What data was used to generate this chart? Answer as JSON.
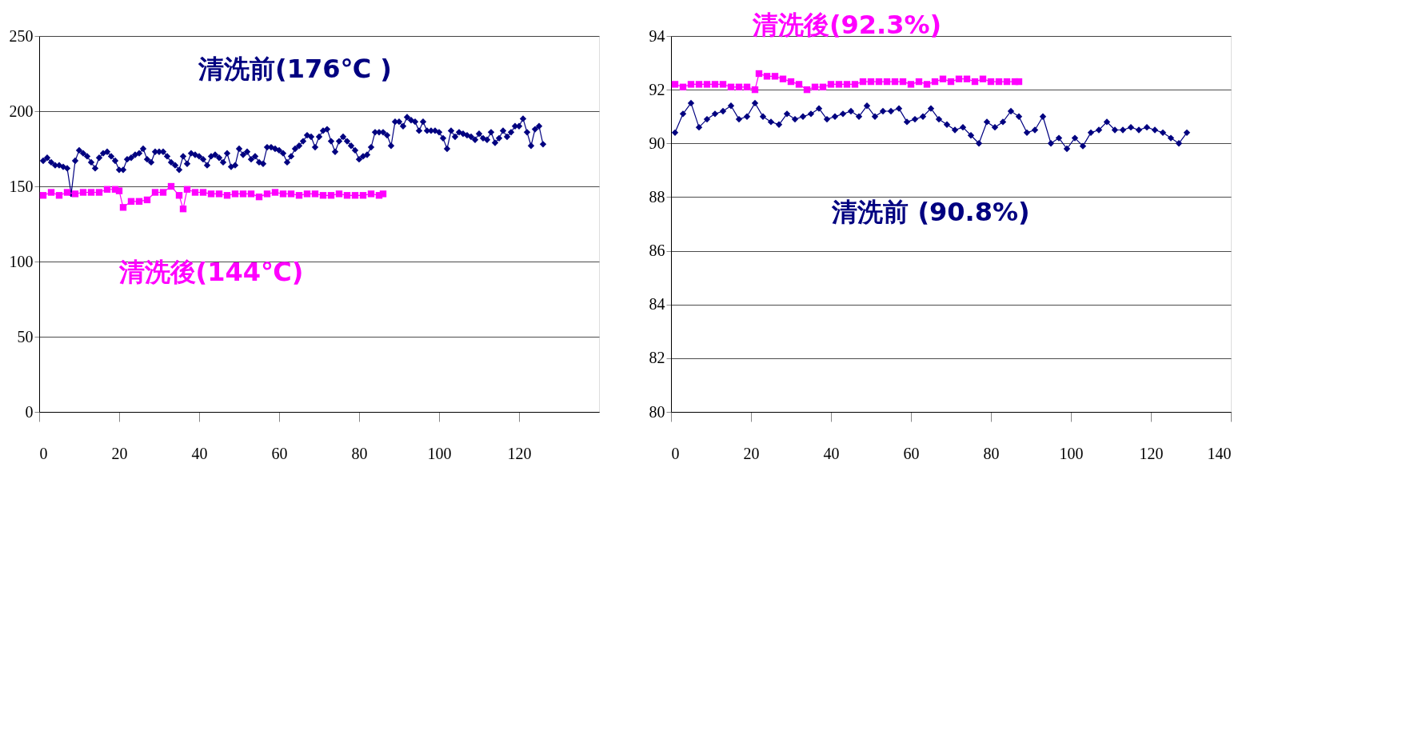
{
  "chart_data": [
    {
      "type": "line",
      "xlim": [
        0,
        140
      ],
      "xticks": [
        0,
        20,
        40,
        60,
        80,
        100,
        120
      ],
      "ylim": [
        0,
        250
      ],
      "yticks": [
        0,
        50,
        100,
        150,
        200,
        250
      ],
      "grid": "y",
      "series": [
        {
          "name": "清洗前(176℃ )",
          "color": "#000080",
          "marker": "diamond",
          "x": [
            1,
            2,
            3,
            4,
            5,
            6,
            7,
            8,
            9,
            10,
            11,
            12,
            13,
            14,
            15,
            16,
            17,
            18,
            19,
            20,
            21,
            22,
            23,
            24,
            25,
            26,
            27,
            28,
            29,
            30,
            31,
            32,
            33,
            34,
            35,
            36,
            37,
            38,
            39,
            40,
            41,
            42,
            43,
            44,
            45,
            46,
            47,
            48,
            49,
            50,
            51,
            52,
            53,
            54,
            55,
            56,
            57,
            58,
            59,
            60,
            61,
            62,
            63,
            64,
            65,
            66,
            67,
            68,
            69,
            70,
            71,
            72,
            73,
            74,
            75,
            76,
            77,
            78,
            79,
            80,
            81,
            82,
            83,
            84,
            85,
            86,
            87,
            88,
            89,
            90,
            91,
            92,
            93,
            94,
            95,
            96,
            97,
            98,
            99,
            100,
            101,
            102,
            103,
            104,
            105,
            106,
            107,
            108,
            109,
            110,
            111,
            112,
            113,
            114,
            115,
            116,
            117,
            118,
            119,
            120,
            121,
            122,
            123,
            124,
            125,
            126
          ],
          "values": [
            167,
            169,
            166,
            164,
            164,
            163,
            162,
            145,
            167,
            174,
            172,
            170,
            166,
            162,
            169,
            172,
            173,
            170,
            167,
            161,
            161,
            168,
            169,
            171,
            172,
            175,
            168,
            166,
            173,
            173,
            173,
            170,
            166,
            164,
            161,
            170,
            165,
            172,
            171,
            170,
            168,
            164,
            170,
            171,
            169,
            166,
            172,
            163,
            164,
            175,
            171,
            173,
            168,
            170,
            166,
            165,
            176,
            176,
            175,
            174,
            172,
            166,
            170,
            175,
            177,
            180,
            184,
            183,
            176,
            183,
            187,
            188,
            180,
            173,
            180,
            183,
            180,
            177,
            174,
            168,
            170,
            171,
            176,
            186,
            186,
            186,
            184,
            177,
            193,
            193,
            190,
            196,
            194,
            193,
            187,
            193,
            187,
            187,
            187,
            186,
            182,
            175,
            187,
            183,
            186,
            185,
            184,
            183,
            181,
            185,
            182,
            181,
            186,
            179,
            182,
            187,
            183,
            186,
            190,
            190,
            195,
            186,
            177,
            188,
            190,
            178
          ]
        },
        {
          "name": "清洗後(144℃)",
          "color": "#ff00ff",
          "marker": "square",
          "x": [
            1,
            3,
            5,
            7,
            9,
            11,
            13,
            15,
            17,
            19,
            20,
            21,
            23,
            25,
            27,
            29,
            31,
            33,
            35,
            36,
            37,
            39,
            41,
            43,
            45,
            47,
            49,
            51,
            53,
            55,
            57,
            59,
            61,
            63,
            65,
            67,
            69,
            71,
            73,
            75,
            77,
            79,
            81,
            83,
            85,
            86
          ],
          "values": [
            144,
            146,
            144,
            146,
            145,
            146,
            146,
            146,
            148,
            148,
            147,
            136,
            140,
            140,
            141,
            146,
            146,
            150,
            144,
            135,
            148,
            146,
            146,
            145,
            145,
            144,
            145,
            145,
            145,
            143,
            145,
            146,
            145,
            145,
            144,
            145,
            145,
            144,
            144,
            145,
            144,
            144,
            144,
            145,
            144,
            145
          ]
        }
      ]
    },
    {
      "type": "line",
      "xlim": [
        0,
        140
      ],
      "xticks": [
        0,
        20,
        40,
        60,
        80,
        100,
        120,
        140
      ],
      "ylim": [
        80,
        94
      ],
      "yticks": [
        80,
        82,
        84,
        86,
        88,
        90,
        92,
        94
      ],
      "grid": "y",
      "series": [
        {
          "name": "清洗後(92.3%)",
          "color": "#ff00ff",
          "marker": "square",
          "x": [
            1,
            3,
            5,
            7,
            9,
            11,
            13,
            15,
            17,
            19,
            21,
            22,
            24,
            26,
            28,
            30,
            32,
            34,
            36,
            38,
            40,
            42,
            44,
            46,
            48,
            50,
            52,
            54,
            56,
            58,
            60,
            62,
            64,
            66,
            68,
            70,
            72,
            74,
            76,
            78,
            80,
            82,
            84,
            86,
            87
          ],
          "values": [
            92.2,
            92.1,
            92.2,
            92.2,
            92.2,
            92.2,
            92.2,
            92.1,
            92.1,
            92.1,
            92.0,
            92.6,
            92.5,
            92.5,
            92.4,
            92.3,
            92.2,
            92.0,
            92.1,
            92.1,
            92.2,
            92.2,
            92.2,
            92.2,
            92.3,
            92.3,
            92.3,
            92.3,
            92.3,
            92.3,
            92.2,
            92.3,
            92.2,
            92.3,
            92.4,
            92.3,
            92.4,
            92.4,
            92.3,
            92.4,
            92.3,
            92.3,
            92.3,
            92.3,
            92.3
          ]
        },
        {
          "name": "清洗前 (90.8%)",
          "color": "#000080",
          "marker": "diamond",
          "x": [
            1,
            3,
            5,
            7,
            9,
            11,
            13,
            15,
            17,
            19,
            21,
            23,
            25,
            27,
            29,
            31,
            33,
            35,
            37,
            39,
            41,
            43,
            45,
            47,
            49,
            51,
            53,
            55,
            57,
            59,
            61,
            63,
            65,
            67,
            69,
            71,
            73,
            75,
            77,
            79,
            81,
            83,
            85,
            87,
            89,
            91,
            93,
            95,
            97,
            99,
            101,
            103,
            105,
            107,
            109,
            111,
            113,
            115,
            117,
            119,
            121,
            123,
            125,
            127,
            129
          ],
          "values": [
            90.4,
            91.1,
            91.5,
            90.6,
            90.9,
            91.1,
            91.2,
            91.4,
            90.9,
            91.0,
            91.5,
            91.0,
            90.8,
            90.7,
            91.1,
            90.9,
            91.0,
            91.1,
            91.3,
            90.9,
            91.0,
            91.1,
            91.2,
            91.0,
            91.4,
            91.0,
            91.2,
            91.2,
            91.3,
            90.8,
            90.9,
            91.0,
            91.3,
            90.9,
            90.7,
            90.5,
            90.6,
            90.3,
            90.0,
            90.8,
            90.6,
            90.8,
            91.2,
            91.0,
            90.4,
            90.5,
            91.0,
            90.0,
            90.2,
            89.8,
            90.2,
            89.9,
            90.4,
            90.5,
            90.8,
            90.5,
            90.5,
            90.6,
            90.5,
            90.6,
            90.5,
            90.4,
            90.2,
            90.0,
            90.4
          ]
        }
      ]
    }
  ]
}
